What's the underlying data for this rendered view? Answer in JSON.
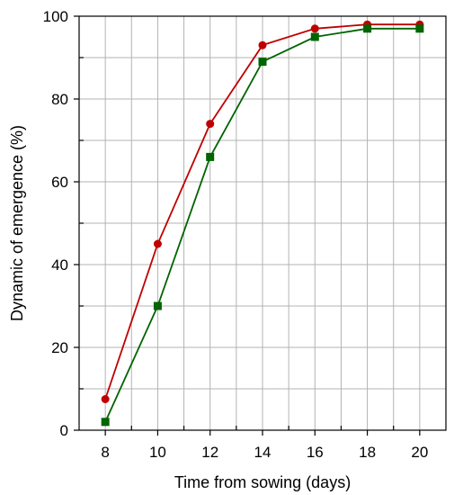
{
  "chart_data": {
    "type": "line",
    "xlabel": "Time from sowing (days)",
    "ylabel": "Dynamic of emergence (%)",
    "xlim": [
      7,
      21
    ],
    "ylim": [
      0,
      100
    ],
    "x_ticks": [
      8,
      10,
      12,
      14,
      16,
      18,
      20
    ],
    "y_ticks": [
      0,
      20,
      40,
      60,
      80,
      100
    ],
    "grid": true,
    "x": [
      8,
      10,
      12,
      14,
      16,
      18,
      20
    ],
    "series": [
      {
        "marker": "circle",
        "color": "#c00000",
        "values": [
          7.5,
          45,
          74,
          93,
          97,
          98,
          98
        ]
      },
      {
        "marker": "square",
        "color": "#006400",
        "values": [
          2,
          30,
          66,
          89,
          95,
          97,
          97
        ]
      }
    ]
  }
}
